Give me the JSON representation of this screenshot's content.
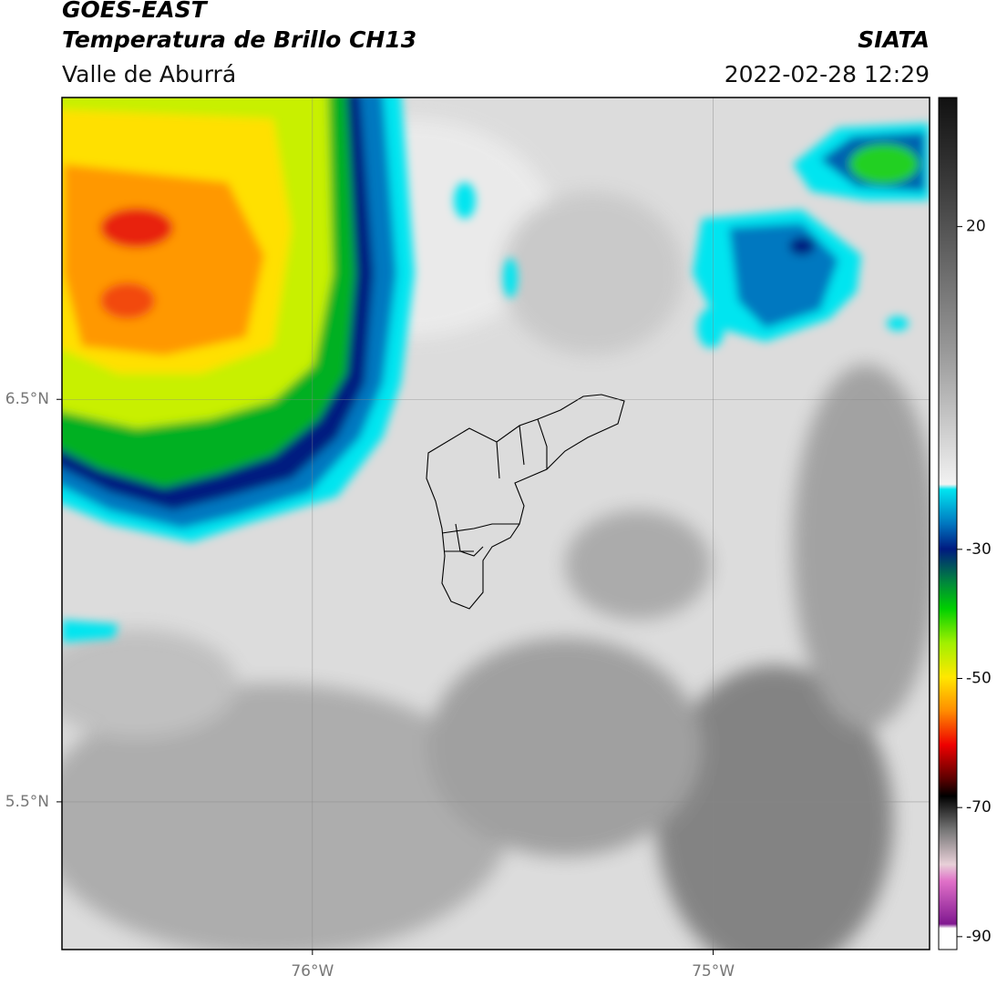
{
  "header": {
    "title": "GOES-EAST",
    "subtitle": "Temperatura de Brillo CH13",
    "region": "Valle de Aburrá",
    "source": "SIATA",
    "timestamp": "2022-02-28 12:29"
  },
  "map": {
    "xlim": [
      -76.625,
      -74.46
    ],
    "ylim": [
      5.133,
      7.25
    ],
    "xticks": [
      {
        "value": -76,
        "label": "76°W"
      },
      {
        "value": -75,
        "label": "75°W"
      }
    ],
    "yticks": [
      {
        "value": 6.5,
        "label": "6.5°N"
      },
      {
        "value": 5.5,
        "label": "5.5°N"
      }
    ],
    "grid": true
  },
  "colorbar": {
    "lim": [
      -92,
      40
    ],
    "ticks": [
      20,
      -30,
      -50,
      -70,
      -90
    ]
  }
}
